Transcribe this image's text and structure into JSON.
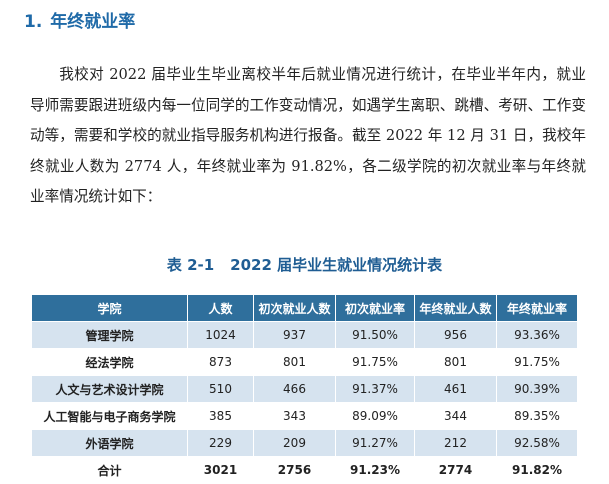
{
  "section": {
    "number": "1.",
    "title": "年终就业率"
  },
  "paragraph": "我校对 2022 届毕业生毕业离校半年后就业情况进行统计，在毕业半年内，就业导师需要跟进班级内每一位同学的工作变动情况，如遇学生离职、跳槽、考研、工作变动等，需要和学校的就业指导服务机构进行报备。截至 2022 年 12 月 31 日，我校年终就业人数为 2774 人，年终就业率为 91.82%，各二级学院的初次就业率与年终就业率情况统计如下：",
  "table": {
    "label": "表 2-1",
    "title": "2022 届毕业生就业情况统计表",
    "headers": [
      "学院",
      "人数",
      "初次就业人数",
      "初次就业率",
      "年终就业人数",
      "年终就业率"
    ],
    "rows": [
      [
        "管理学院",
        "1024",
        "937",
        "91.50%",
        "956",
        "93.36%"
      ],
      [
        "经法学院",
        "873",
        "801",
        "91.75%",
        "801",
        "91.75%"
      ],
      [
        "人文与艺术设计学院",
        "510",
        "466",
        "91.37%",
        "461",
        "90.39%"
      ],
      [
        "人工智能与电子商务学院",
        "385",
        "343",
        "89.09%",
        "344",
        "89.35%"
      ],
      [
        "外语学院",
        "229",
        "209",
        "91.27%",
        "212",
        "92.58%"
      ],
      [
        "合计",
        "3021",
        "2756",
        "91.23%",
        "2774",
        "91.82%"
      ]
    ]
  },
  "colors": {
    "heading": "#1f6aa8",
    "header_bg": "#2f6f9c",
    "stripe_bg": "#d6e3ef"
  }
}
